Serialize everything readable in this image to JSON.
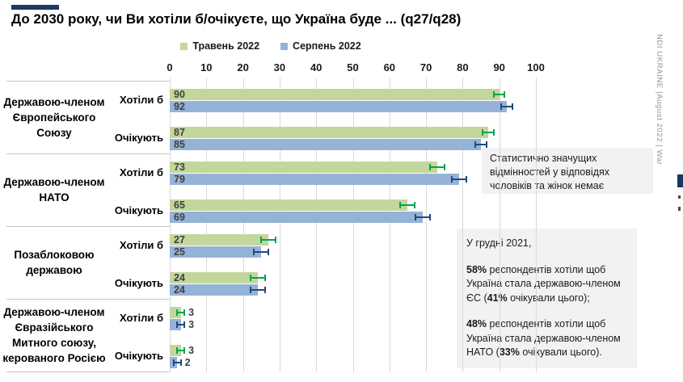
{
  "slide": {
    "title": "До 2030 року, чи Ви хотіли б/очікуєте, що Україна буде ... (q27/q28)",
    "side_note": "NDI UKRAINE |August 2022 | War"
  },
  "colors": {
    "may_bar": "#c3d69b",
    "aug_bar": "#95b3d7",
    "may_error": "#00a551",
    "aug_error": "#1f497d",
    "accent_bar": "#1f3864",
    "gridline": "#d9d9d9",
    "separator": "#c6c6c6",
    "note_bg": "#f2f2f2",
    "value_label": "#3f3f3f"
  },
  "chart_data": {
    "type": "bar",
    "orientation": "horizontal",
    "title": "До 2030 року, чи Ви хотіли б/очікуєте, що Україна буде ... (q27/q28)",
    "grid": true,
    "legend_position": "top-center",
    "legend": [
      {
        "name": "Травень 2022",
        "color": "#c3d69b"
      },
      {
        "name": "Серпень 2022",
        "color": "#95b3d7"
      }
    ],
    "axis": {
      "min": 0,
      "max": 100,
      "ticks": [
        0,
        10,
        20,
        30,
        40,
        50,
        60,
        70,
        80,
        90,
        100
      ]
    },
    "categories": [
      {
        "label": "Державою-членом Європейського Союзу",
        "label_lines": [
          "Державою-членом",
          "Європейського",
          "Союзу"
        ],
        "rows": [
          {
            "label": "Хотіли б",
            "bars": [
              {
                "series": "Травень 2022",
                "value": 90,
                "error": 1.5
              },
              {
                "series": "Серпень 2022",
                "value": 92,
                "error": 1.5
              }
            ]
          },
          {
            "label": "Очікують",
            "bars": [
              {
                "series": "Травень 2022",
                "value": 87,
                "error": 1.5
              },
              {
                "series": "Серпень 2022",
                "value": 85,
                "error": 1.5
              }
            ]
          }
        ]
      },
      {
        "label": "Державою-членом НАТО",
        "label_lines": [
          "Державою-членом",
          "НАТО"
        ],
        "rows": [
          {
            "label": "Хотіли б",
            "bars": [
              {
                "series": "Травень 2022",
                "value": 73,
                "error": 2
              },
              {
                "series": "Серпень 2022",
                "value": 79,
                "error": 2
              }
            ]
          },
          {
            "label": "Очікують",
            "bars": [
              {
                "series": "Травень 2022",
                "value": 65,
                "error": 2
              },
              {
                "series": "Серпень 2022",
                "value": 69,
                "error": 2
              }
            ]
          }
        ]
      },
      {
        "label": "Позаблоковою державою",
        "label_lines": [
          "Позаблоковою",
          "державою"
        ],
        "rows": [
          {
            "label": "Хотіли б",
            "bars": [
              {
                "series": "Травень 2022",
                "value": 27,
                "error": 2
              },
              {
                "series": "Серпень 2022",
                "value": 25,
                "error": 2
              }
            ]
          },
          {
            "label": "Очікують",
            "bars": [
              {
                "series": "Травень 2022",
                "value": 24,
                "error": 2
              },
              {
                "series": "Серпень 2022",
                "value": 24,
                "error": 2
              }
            ]
          }
        ]
      },
      {
        "label": "Державою-членом Євразійського Митного союзу, керованого Росією",
        "label_lines": [
          "Державою-членом",
          "Євразійського",
          "Митного союзу,",
          "керованого Росією"
        ],
        "rows": [
          {
            "label": "Хотіли б",
            "bars": [
              {
                "series": "Травень 2022",
                "value": 3,
                "error": 1
              },
              {
                "series": "Серпень 2022",
                "value": 3,
                "error": 1
              }
            ]
          },
          {
            "label": "Очікують",
            "bars": [
              {
                "series": "Травень 2022",
                "value": 3,
                "error": 1
              },
              {
                "series": "Серпень 2022",
                "value": 2,
                "error": 1
              }
            ]
          }
        ]
      }
    ]
  },
  "notes": {
    "gender_note": "Статистично значущих\nвідмінностей у відповідях\nчоловіків та жінок немає",
    "december_note": {
      "paragraphs": [
        [
          {
            "t": "У грудні 2021,",
            "b": false
          }
        ],
        [
          {
            "t": "58%",
            "b": true
          },
          {
            "t": " респондентів хотіли щоб Україна стала державою-членом ЄС (",
            "b": false
          },
          {
            "t": "41%",
            "b": true
          },
          {
            "t": " очікували цього);",
            "b": false
          }
        ],
        [
          {
            "t": "48%",
            "b": true
          },
          {
            "t": " респондентів хотіли щоб Україна стала державою-членом НАТО (",
            "b": false
          },
          {
            "t": "33%",
            "b": true
          },
          {
            "t": " очікували цього).",
            "b": false
          }
        ]
      ]
    }
  }
}
